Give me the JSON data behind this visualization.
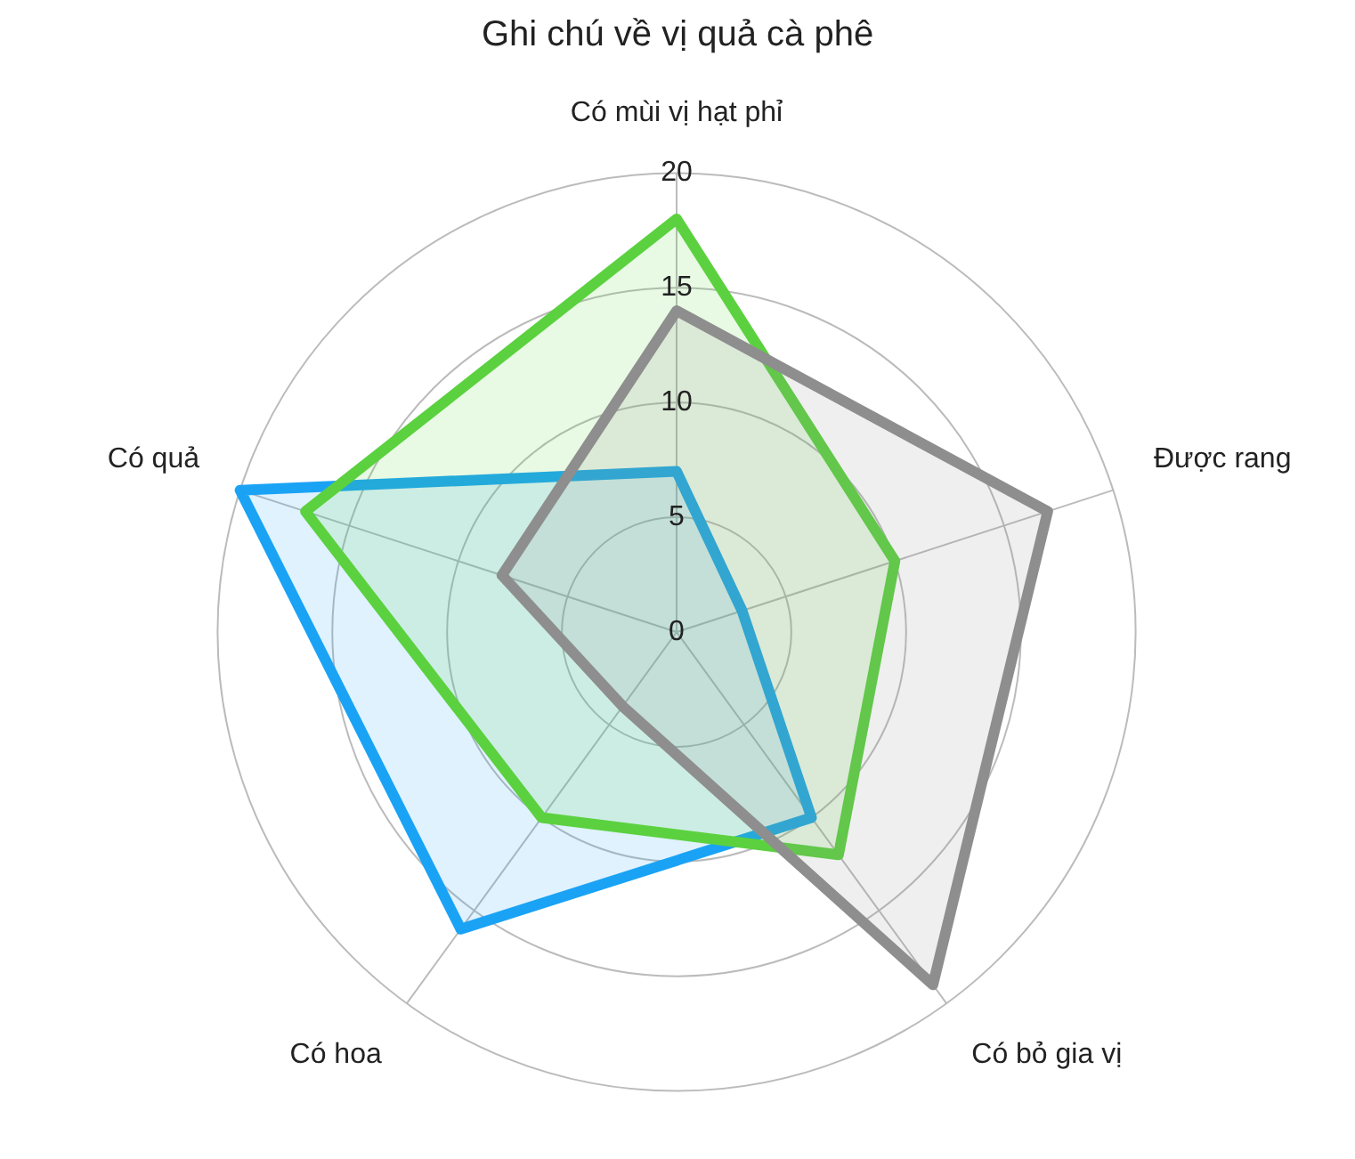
{
  "chart_data": {
    "type": "radar",
    "title": "Ghi chú về vị quả cà phê",
    "categories": [
      "Có mùi vị hạt phỉ",
      "Được rang",
      "Có bỏ gia vị",
      "Có hoa",
      "Có quả"
    ],
    "series": [
      {
        "color": "#8e8e8e",
        "values": [
          14,
          17,
          19,
          4,
          8
        ]
      },
      {
        "color": "#5bd13f",
        "values": [
          18,
          10,
          12,
          10,
          17
        ]
      },
      {
        "color": "#1aa3f5",
        "values": [
          7,
          3,
          10,
          16,
          20
        ]
      }
    ],
    "ylim": [
      0,
      20
    ],
    "yticks": [
      0,
      5,
      10,
      15,
      20
    ],
    "grid": true,
    "legend": false,
    "marker": "none"
  }
}
